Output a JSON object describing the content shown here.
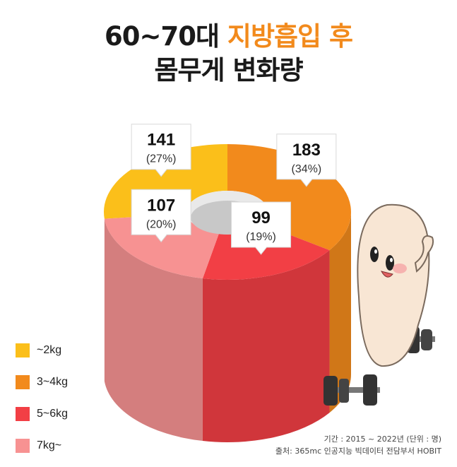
{
  "chart_data": {
    "type": "pie",
    "title_line1_prefix": "60~70대 ",
    "title_line1_highlight": "지방흡입 후",
    "title_line2": "몸무게 변화량",
    "categories": [
      "~2kg",
      "3~4kg",
      "5~6kg",
      "7kg~"
    ],
    "values": [
      141,
      183,
      99,
      107
    ],
    "percent_labels": [
      "(27%)",
      "(34%)",
      "(19%)",
      "(20%)"
    ],
    "value_labels": [
      "141",
      "183",
      "99",
      "107"
    ],
    "legend_position": "bottom-left"
  },
  "colors": {
    "~2kg": "#fbbf1a",
    "3~4kg": "#f28a1c",
    "5~6kg": "#f23f45",
    "7kg~": "#f79292",
    "title_highlight": "#f28a1c"
  },
  "footer": {
    "period": "기간 : 2015 ~ 2022년 (단위 : 명)",
    "source": "출처: 365mc 인공지능 빅데이터 전담부서 HOBIT"
  }
}
